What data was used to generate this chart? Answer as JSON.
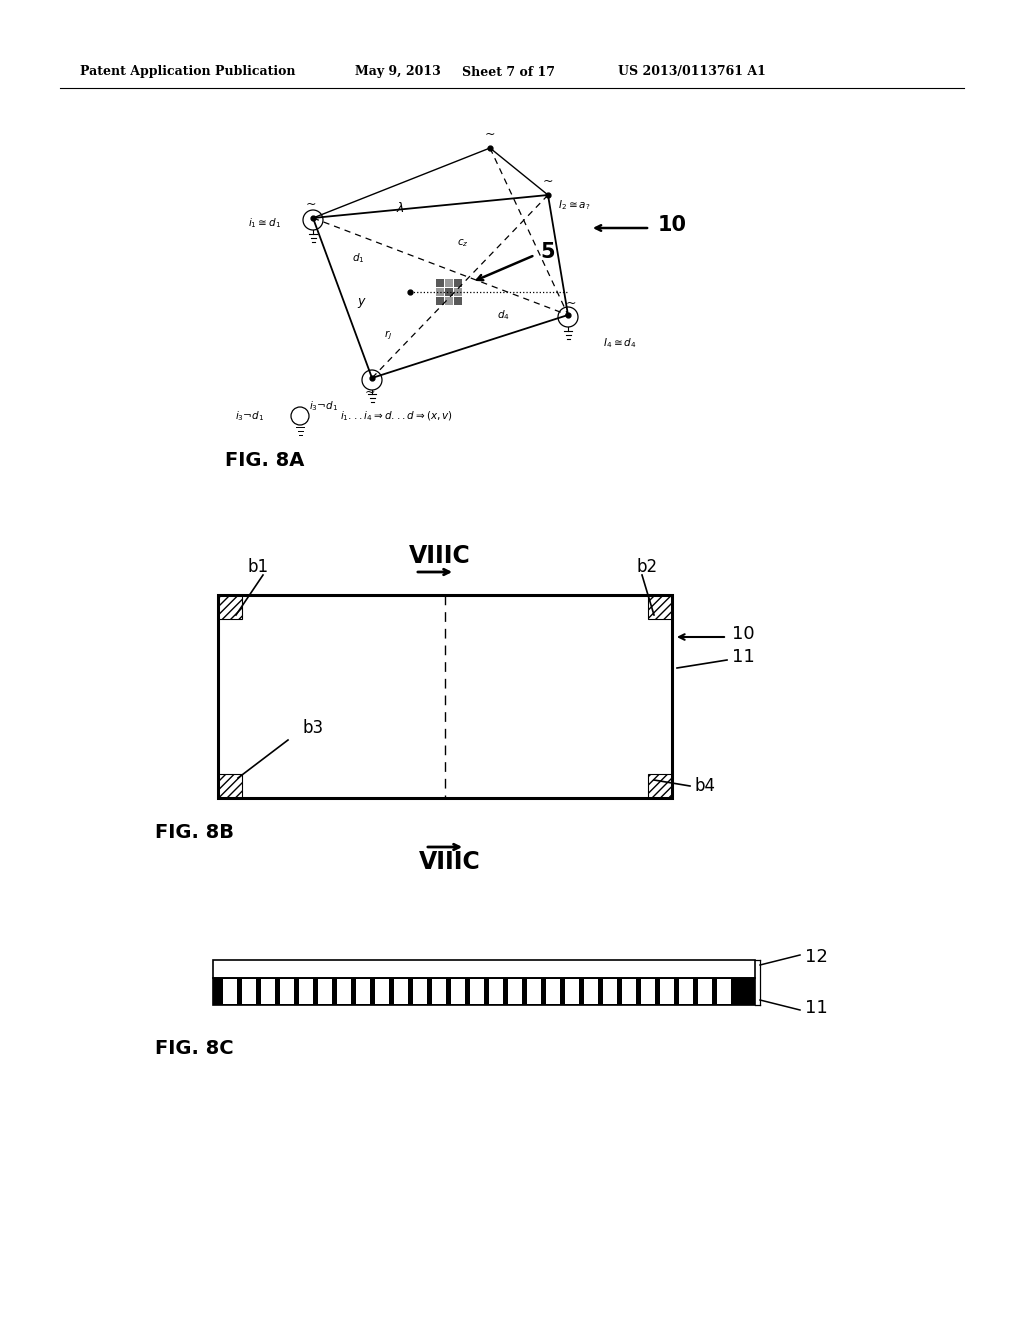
{
  "bg_color": "#ffffff",
  "header_text": "Patent Application Publication",
  "header_date": "May 9, 2013",
  "header_sheet": "Sheet 7 of 17",
  "header_patent": "US 2013/0113761 A1",
  "fig8a_label": "FIG. 8A",
  "fig8b_label": "FIG. 8B",
  "fig8c_label": "FIG. 8C"
}
